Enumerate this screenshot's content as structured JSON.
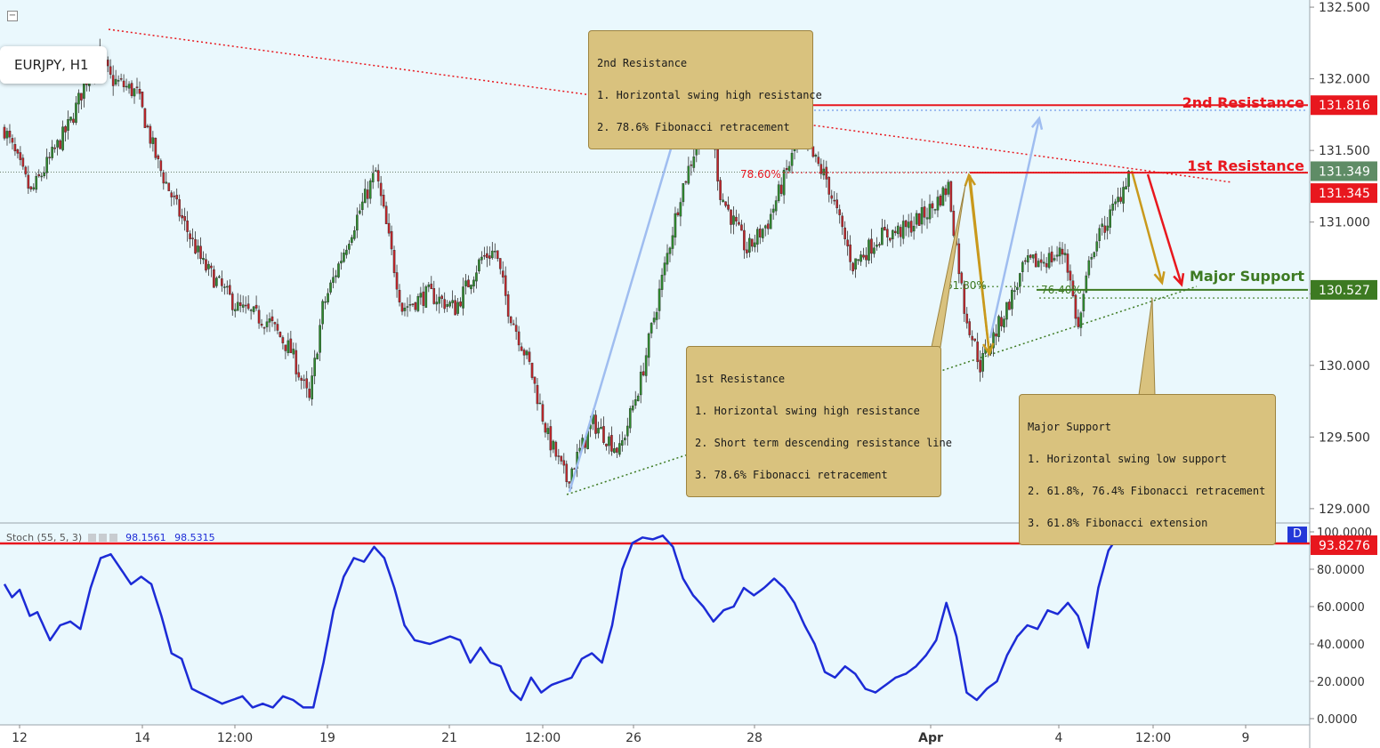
{
  "symbol": "EURJPY, H1",
  "colors": {
    "plot_bg": "#eaf8fd",
    "bull": "#2e8b2e",
    "bear": "#c0262b",
    "resistance": "#e8171e",
    "support": "#3d7a22",
    "fib_blue": "#9fbdf0",
    "stoch_line": "#1c2bd6",
    "callout": "#d9c27e",
    "arrow_gold": "#c9991c"
  },
  "chart_data": [
    {
      "type": "candlestick",
      "title": "EURJPY, H1",
      "ylim": [
        128.9,
        132.55
      ],
      "x_ticks": [
        "12",
        "14",
        "12:00",
        "19",
        "21",
        "12:00",
        "26",
        "28",
        "Apr",
        "4",
        "12:00",
        "9"
      ],
      "y_ticks": [
        "132.500",
        "132.000",
        "131.500",
        "131.000",
        "130.500",
        "130.000",
        "129.500",
        "129.000"
      ],
      "series": [
        {
          "name": "Price anchors (bar index, price)",
          "points": [
            [
              0,
              131.65
            ],
            [
              10,
              131.2
            ],
            [
              25,
              131.7
            ],
            [
              35,
              132.2
            ],
            [
              40,
              132.0
            ],
            [
              50,
              131.9
            ],
            [
              58,
              131.4
            ],
            [
              65,
              131.1
            ],
            [
              75,
              130.7
            ],
            [
              88,
              130.4
            ],
            [
              100,
              130.3
            ],
            [
              108,
              130.1
            ],
            [
              115,
              129.75
            ],
            [
              120,
              130.4
            ],
            [
              130,
              130.9
            ],
            [
              140,
              131.35
            ],
            [
              150,
              130.4
            ],
            [
              160,
              130.5
            ],
            [
              170,
              130.4
            ],
            [
              180,
              130.75
            ],
            [
              185,
              130.8
            ],
            [
              190,
              130.4
            ],
            [
              198,
              130.0
            ],
            [
              205,
              129.5
            ],
            [
              212,
              129.2
            ],
            [
              222,
              129.6
            ],
            [
              232,
              129.4
            ],
            [
              240,
              129.9
            ],
            [
              248,
              130.6
            ],
            [
              255,
              131.2
            ],
            [
              262,
              131.6
            ],
            [
              266,
              131.75
            ],
            [
              270,
              131.2
            ],
            [
              280,
              130.8
            ],
            [
              288,
              131.0
            ],
            [
              300,
              131.6
            ],
            [
              310,
              131.3
            ],
            [
              320,
              130.7
            ],
            [
              330,
              130.9
            ],
            [
              340,
              130.95
            ],
            [
              350,
              131.1
            ],
            [
              356,
              131.25
            ],
            [
              362,
              130.4
            ],
            [
              368,
              130.0
            ],
            [
              378,
              130.4
            ],
            [
              385,
              130.7
            ],
            [
              395,
              130.75
            ],
            [
              400,
              130.8
            ],
            [
              405,
              130.25
            ],
            [
              410,
              130.8
            ],
            [
              420,
              131.15
            ],
            [
              424,
              131.35
            ]
          ]
        }
      ],
      "levels": [
        {
          "name": "2nd Resistance",
          "value": 131.816,
          "label": "131.816"
        },
        {
          "name": "1st Resistance",
          "value": 131.345,
          "label": "131.345"
        },
        {
          "name": "Major Support",
          "value": 130.527,
          "label": "130.527"
        }
      ],
      "current_price": "131.349",
      "fib_labels": [
        "61.80%",
        "78.60%",
        "61.80%",
        "76.40%"
      ]
    },
    {
      "type": "line",
      "title": "Stoch (55, 5, 3)",
      "ylim": [
        0,
        100
      ],
      "y_ticks": [
        "100.0000",
        "80.0000",
        "60.0000",
        "40.0000",
        "20.0000",
        "0.0000"
      ],
      "overbought_level": "93.8276",
      "legend_values": [
        "98.1561",
        "98.5315"
      ],
      "series": [
        {
          "name": "%K",
          "points": [
            [
              0,
              72
            ],
            [
              3,
              65
            ],
            [
              6,
              69
            ],
            [
              10,
              55
            ],
            [
              13,
              57
            ],
            [
              18,
              42
            ],
            [
              22,
              50
            ],
            [
              26,
              52
            ],
            [
              30,
              48
            ],
            [
              34,
              70
            ],
            [
              38,
              86
            ],
            [
              42,
              88
            ],
            [
              46,
              80
            ],
            [
              50,
              72
            ],
            [
              54,
              76
            ],
            [
              58,
              72
            ],
            [
              62,
              55
            ],
            [
              66,
              35
            ],
            [
              70,
              32
            ],
            [
              74,
              16
            ],
            [
              80,
              12
            ],
            [
              86,
              8
            ],
            [
              90,
              10
            ],
            [
              94,
              12
            ],
            [
              98,
              6
            ],
            [
              102,
              8
            ],
            [
              106,
              6
            ],
            [
              110,
              12
            ],
            [
              114,
              10
            ],
            [
              118,
              6
            ],
            [
              122,
              6
            ],
            [
              126,
              30
            ],
            [
              130,
              58
            ],
            [
              134,
              76
            ],
            [
              138,
              86
            ],
            [
              142,
              84
            ],
            [
              146,
              92
            ],
            [
              150,
              86
            ],
            [
              154,
              70
            ],
            [
              158,
              50
            ],
            [
              162,
              42
            ],
            [
              168,
              40
            ],
            [
              172,
              42
            ],
            [
              176,
              44
            ],
            [
              180,
              42
            ],
            [
              184,
              30
            ],
            [
              188,
              38
            ],
            [
              192,
              30
            ],
            [
              196,
              28
            ],
            [
              200,
              15
            ],
            [
              204,
              10
            ],
            [
              208,
              22
            ],
            [
              212,
              14
            ],
            [
              216,
              18
            ],
            [
              220,
              20
            ],
            [
              224,
              22
            ],
            [
              228,
              32
            ],
            [
              232,
              35
            ],
            [
              236,
              30
            ],
            [
              240,
              50
            ],
            [
              244,
              80
            ],
            [
              248,
              94
            ],
            [
              252,
              97
            ],
            [
              256,
              96
            ],
            [
              260,
              98
            ],
            [
              264,
              92
            ],
            [
              268,
              75
            ],
            [
              272,
              66
            ],
            [
              276,
              60
            ],
            [
              280,
              52
            ],
            [
              284,
              58
            ],
            [
              288,
              60
            ],
            [
              292,
              70
            ],
            [
              296,
              66
            ],
            [
              300,
              70
            ],
            [
              304,
              75
            ],
            [
              308,
              70
            ],
            [
              312,
              62
            ],
            [
              316,
              50
            ],
            [
              320,
              40
            ],
            [
              324,
              25
            ],
            [
              328,
              22
            ],
            [
              332,
              28
            ],
            [
              336,
              24
            ],
            [
              340,
              16
            ],
            [
              344,
              14
            ],
            [
              348,
              18
            ],
            [
              352,
              22
            ],
            [
              356,
              24
            ],
            [
              360,
              28
            ],
            [
              364,
              34
            ],
            [
              368,
              42
            ],
            [
              372,
              62
            ],
            [
              376,
              44
            ],
            [
              380,
              14
            ],
            [
              384,
              10
            ],
            [
              388,
              16
            ],
            [
              392,
              20
            ],
            [
              396,
              34
            ],
            [
              400,
              44
            ],
            [
              404,
              50
            ],
            [
              408,
              48
            ],
            [
              412,
              58
            ],
            [
              416,
              56
            ],
            [
              420,
              62
            ],
            [
              424,
              55
            ],
            [
              428,
              38
            ],
            [
              432,
              70
            ],
            [
              436,
              90
            ],
            [
              440,
              98
            ],
            [
              444,
              99
            ]
          ]
        }
      ]
    }
  ],
  "annotations": {
    "res2_label": "2nd Resistance",
    "res1_label": "1st Resistance",
    "support_label": "Major Support",
    "callout_res2": [
      "2nd Resistance",
      "1. Horizontal swing high resistance",
      "2. 78.6% Fibonacci retracement"
    ],
    "callout_res1": [
      "1st Resistance",
      "1. Horizontal swing high resistance",
      "2. Short term descending resistance line",
      "3. 78.6% Fibonacci retracement"
    ],
    "callout_support": [
      "Major Support",
      "1. Horizontal swing low support",
      "2. 61.8%, 76.4% Fibonacci retracement",
      "3. 61.8% Fibonacci extension"
    ]
  },
  "stoch_legend": {
    "label": "Stoch (55, 5, 3)",
    "v1": "98.1561",
    "v2": "98.5315"
  },
  "d_badge": "D",
  "collapse_icon": "minus-square-icon"
}
